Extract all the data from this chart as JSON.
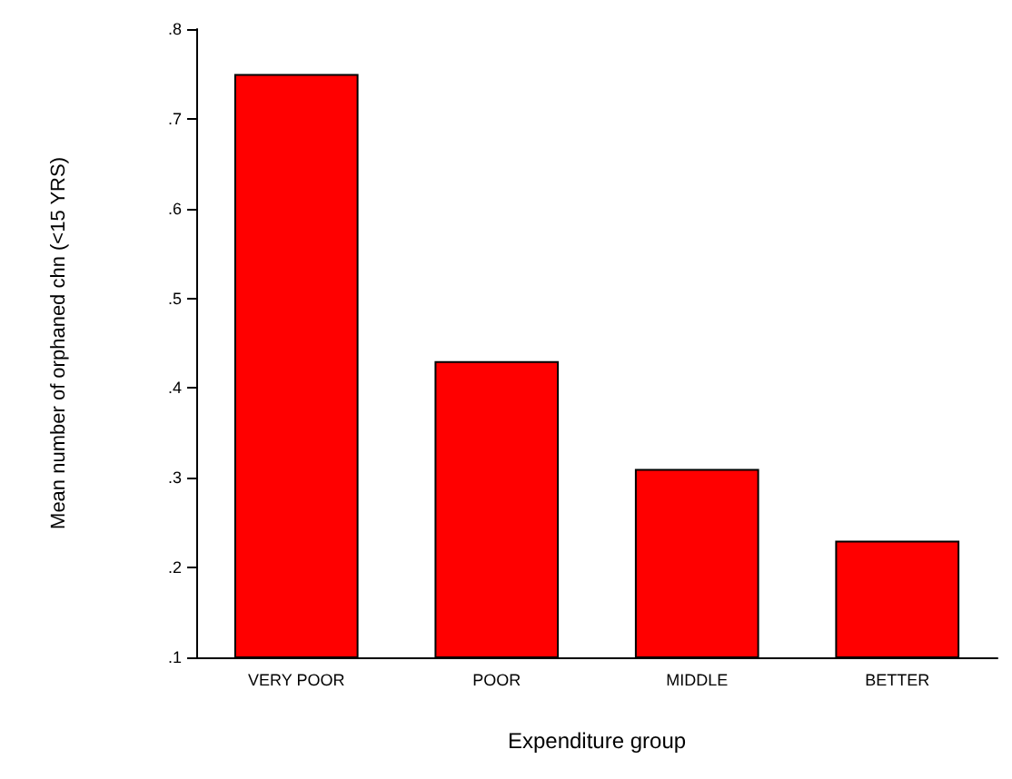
{
  "chart_data": {
    "type": "bar",
    "xlabel": "Expenditure group",
    "ylabel": "Mean number of orphaned chn (<15 YRS)",
    "categories": [
      "VERY POOR",
      "POOR",
      "MIDDLE",
      "BETTER"
    ],
    "values": [
      0.75,
      0.43,
      0.31,
      0.23
    ],
    "color": "#ff0000",
    "ylim": [
      0.1,
      0.8
    ],
    "yticks": [
      {
        "value": 0.1,
        "label": ".1"
      },
      {
        "value": 0.2,
        "label": ".2"
      },
      {
        "value": 0.3,
        "label": ".3"
      },
      {
        "value": 0.4,
        "label": ".4"
      },
      {
        "value": 0.5,
        "label": ".5"
      },
      {
        "value": 0.6,
        "label": ".6"
      },
      {
        "value": 0.7,
        "label": ".7"
      },
      {
        "value": 0.8,
        "label": ".8"
      }
    ],
    "grid": false
  }
}
